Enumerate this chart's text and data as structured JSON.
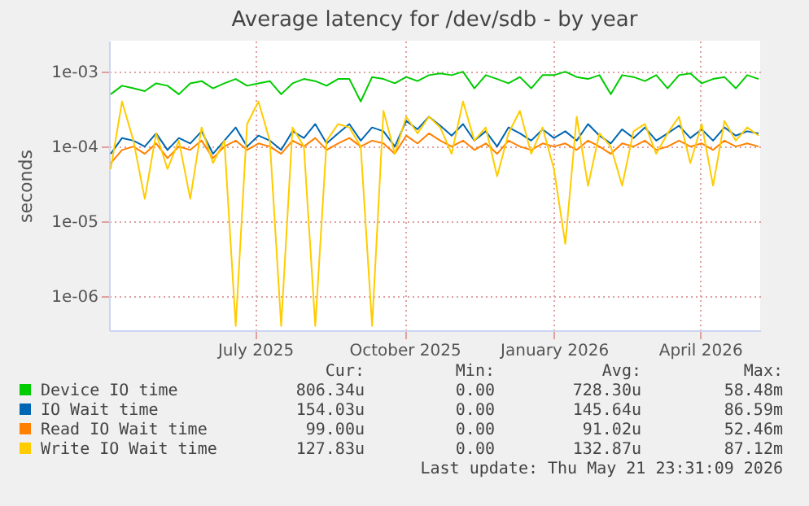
{
  "chart_data": {
    "type": "line",
    "title": "Average latency for /dev/sdb - by year",
    "ylabel": "seconds",
    "log": true,
    "grid": true,
    "legend": "bottom",
    "x": [
      "2025-04-03",
      "2025-04-10",
      "2025-04-17",
      "2025-04-24",
      "2025-05-01",
      "2025-05-08",
      "2025-05-15",
      "2025-05-22",
      "2025-05-29",
      "2025-06-05",
      "2025-06-12",
      "2025-06-19",
      "2025-06-26",
      "2025-07-03",
      "2025-07-10",
      "2025-07-17",
      "2025-07-24",
      "2025-07-31",
      "2025-08-07",
      "2025-08-14",
      "2025-08-21",
      "2025-08-28",
      "2025-09-04",
      "2025-09-11",
      "2025-09-18",
      "2025-09-25",
      "2025-10-02",
      "2025-10-09",
      "2025-10-16",
      "2025-10-23",
      "2025-10-30",
      "2025-11-06",
      "2025-11-13",
      "2025-11-20",
      "2025-11-27",
      "2025-12-04",
      "2025-12-11",
      "2025-12-18",
      "2025-12-25",
      "2026-01-01",
      "2026-01-08",
      "2026-01-15",
      "2026-01-22",
      "2026-01-29",
      "2026-02-05",
      "2026-02-12",
      "2026-02-19",
      "2026-02-26",
      "2026-03-05",
      "2026-03-12",
      "2026-03-19",
      "2026-03-26",
      "2026-04-02",
      "2026-04-09",
      "2026-04-16",
      "2026-04-23",
      "2026-04-30",
      "2026-05-07"
    ],
    "xlim": [
      "2025-04-02",
      "2026-05-08"
    ],
    "xticks": [
      {
        "value": "2025-07-01",
        "label": "July 2025"
      },
      {
        "value": "2025-10-01",
        "label": "October 2025"
      },
      {
        "value": "2026-01-01",
        "label": "January 2026"
      },
      {
        "value": "2026-04-01",
        "label": "April 2026"
      }
    ],
    "ylim": [
      3.5e-07,
      0.0026
    ],
    "yticks": [
      {
        "value": 0.001,
        "label": "1e-03"
      },
      {
        "value": 0.0001,
        "label": "1e-04"
      },
      {
        "value": 1e-05,
        "label": "1e-05"
      },
      {
        "value": 1e-06,
        "label": "1e-06"
      }
    ],
    "series": [
      {
        "name": "Device IO time",
        "color": "#00cc00",
        "values": [
          0.0005,
          0.00065,
          0.0006,
          0.00055,
          0.0007,
          0.00065,
          0.0005,
          0.0007,
          0.00075,
          0.0006,
          0.0007,
          0.0008,
          0.00065,
          0.0007,
          0.00075,
          0.0005,
          0.0007,
          0.0008,
          0.00075,
          0.00065,
          0.0008,
          0.0008,
          0.0004,
          0.00085,
          0.0008,
          0.0007,
          0.00085,
          0.00075,
          0.0009,
          0.00095,
          0.0009,
          0.001,
          0.0006,
          0.0009,
          0.0008,
          0.0007,
          0.00085,
          0.0006,
          0.0009,
          0.0009,
          0.001,
          0.00085,
          0.0008,
          0.0009,
          0.0005,
          0.0009,
          0.00085,
          0.00075,
          0.0009,
          0.0006,
          0.0009,
          0.00095,
          0.0007,
          0.0008,
          0.00085,
          0.0006,
          0.0009,
          0.0008
        ]
      },
      {
        "name": "IO Wait time",
        "color": "#0066b3",
        "values": [
          8e-05,
          0.00013,
          0.00012,
          0.0001,
          0.00015,
          9e-05,
          0.00013,
          0.00011,
          0.00016,
          8e-05,
          0.00012,
          0.00018,
          0.0001,
          0.00014,
          0.00012,
          9e-05,
          0.00016,
          0.00013,
          0.0002,
          0.00011,
          0.00015,
          0.0002,
          0.00012,
          0.00018,
          0.00016,
          0.0001,
          0.00022,
          0.00017,
          0.00025,
          0.00019,
          0.00014,
          0.0002,
          0.00012,
          0.00016,
          0.0001,
          0.00018,
          0.00015,
          0.00012,
          0.00017,
          0.00013,
          0.00016,
          0.00012,
          0.0002,
          0.00014,
          0.00011,
          0.00017,
          0.00013,
          0.00018,
          0.00012,
          0.00015,
          0.00019,
          0.00013,
          0.00017,
          0.00012,
          0.00018,
          0.00014,
          0.00016,
          0.00015
        ]
      },
      {
        "name": "Read IO Wait time",
        "color": "#ff8000",
        "values": [
          6e-05,
          9e-05,
          0.0001,
          8e-05,
          0.00011,
          7e-05,
          0.0001,
          9e-05,
          0.00012,
          7e-05,
          0.0001,
          0.00012,
          9e-05,
          0.00011,
          0.0001,
          8e-05,
          0.00012,
          0.0001,
          0.00013,
          9e-05,
          0.00011,
          0.00013,
          0.0001,
          0.00012,
          0.00011,
          8e-05,
          0.00014,
          0.00011,
          0.00015,
          0.00012,
          0.0001,
          0.00012,
          9e-05,
          0.00011,
          8e-05,
          0.00012,
          0.0001,
          9e-05,
          0.00011,
          0.0001,
          0.00011,
          9e-05,
          0.00012,
          0.0001,
          8e-05,
          0.00011,
          0.0001,
          0.00012,
          9e-05,
          0.0001,
          0.00012,
          0.0001,
          0.00011,
          9e-05,
          0.00012,
          0.0001,
          0.00011,
          0.0001
        ]
      },
      {
        "name": "Write IO Wait time",
        "color": "#ffcc00",
        "values": [
          5e-05,
          0.0004,
          0.00012,
          2e-05,
          0.00015,
          5e-05,
          0.00012,
          2e-05,
          0.00018,
          6e-05,
          0.00012,
          4e-07,
          0.0002,
          0.0004,
          0.00012,
          4e-07,
          0.00018,
          0.0001,
          4e-07,
          0.00012,
          0.0002,
          0.00018,
          0.0001,
          4e-07,
          0.0003,
          8e-05,
          0.00025,
          0.00015,
          0.00025,
          0.00018,
          8e-05,
          0.0004,
          0.00012,
          0.00018,
          4e-05,
          0.00015,
          0.0003,
          8e-05,
          0.00018,
          5e-05,
          5e-06,
          0.00025,
          3e-05,
          0.00015,
          0.0001,
          3e-05,
          0.00016,
          0.0002,
          8e-05,
          0.00015,
          0.00025,
          6e-05,
          0.0002,
          3e-05,
          0.00022,
          0.00012,
          0.00018,
          0.00014
        ]
      }
    ],
    "annotations": [
      "Cur:",
      "Min:",
      "Avg:",
      "Max:",
      "806.34u",
      "0.00",
      "728.30u",
      "58.48m",
      "154.03u",
      "0.00",
      "145.64u",
      "86.59m",
      "99.00u",
      "0.00",
      "91.02u",
      "52.46m",
      "127.83u",
      "0.00",
      "132.87u",
      "87.12m",
      "Last update: Thu May 21 23:31:09 2026"
    ]
  }
}
